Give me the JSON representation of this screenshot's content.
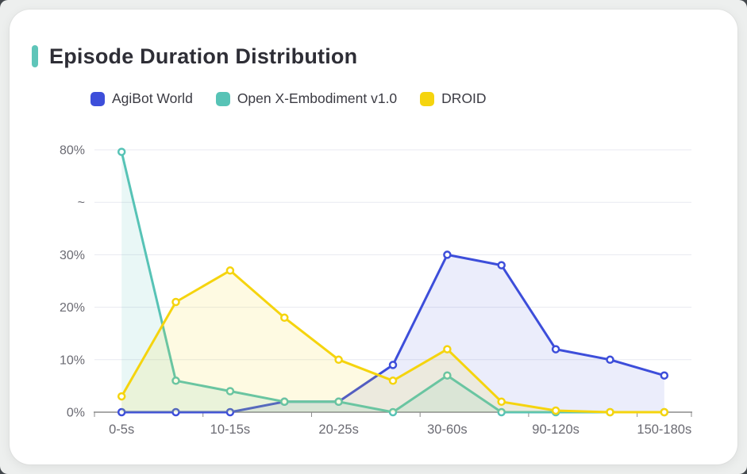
{
  "header": {
    "accent_color": "#5fc5b9"
  },
  "colors": {
    "page_bg": "#edefee",
    "card_bg": "#ffffff",
    "title_text": "#2e2e36",
    "legend_text": "#3b3b43",
    "grid_line": "#e8eaf0",
    "axis_line": "#8c8c8c",
    "axis_label": "#6b6b73"
  },
  "chart_data": {
    "type": "line",
    "title": "Episode Duration Distribution",
    "xlabel": "",
    "ylabel": "",
    "legend_position": "top",
    "grid": true,
    "categories": [
      "0-5s",
      "",
      "10-15s",
      "",
      "20-25s",
      "",
      "30-60s",
      "",
      "90-120s",
      "",
      "150-180s"
    ],
    "visible_x_labels": [
      "0-5s",
      "10-15s",
      "20-25s",
      "30-60s",
      "90-120s",
      "150-180s"
    ],
    "y_axis": {
      "unit": "%",
      "ticks": [
        {
          "value": 0,
          "label": "0%"
        },
        {
          "value": 10,
          "label": "10%"
        },
        {
          "value": 20,
          "label": "20%"
        },
        {
          "value": 30,
          "label": "30%"
        },
        {
          "value": "break",
          "label": "~"
        },
        {
          "value": 80,
          "label": "80%"
        }
      ],
      "break": {
        "from": 30,
        "to": 80
      }
    },
    "series": [
      {
        "name": "AgiBot World",
        "color": "#3d4eda",
        "values": [
          0,
          0,
          0,
          2,
          2,
          9,
          30,
          28,
          12,
          10,
          7
        ]
      },
      {
        "name": "Open X-Embodiment v1.0",
        "color": "#57c3b6",
        "values": [
          79,
          6,
          4,
          2,
          2,
          0,
          7,
          0,
          0,
          0,
          0
        ]
      },
      {
        "name": "DROID",
        "color": "#f5d40e",
        "values": [
          3,
          21,
          27,
          18,
          10,
          6,
          12,
          2,
          0.3,
          0,
          0
        ]
      }
    ]
  }
}
